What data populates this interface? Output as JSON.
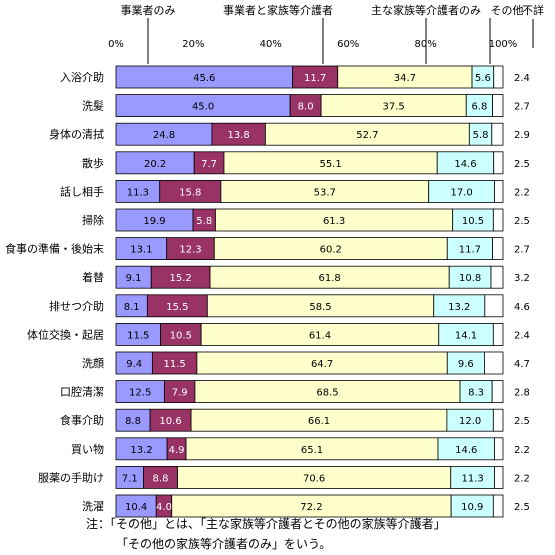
{
  "chart_data": {
    "type": "bar",
    "orientation": "horizontal",
    "stacked": true,
    "xlim": [
      0,
      100
    ],
    "x_ticks": [
      "0%",
      "20%",
      "40%",
      "60%",
      "80%",
      "100%"
    ],
    "unreported_header": "不詳",
    "series": [
      {
        "name": "事業者のみ",
        "color": "#9999ff"
      },
      {
        "name": "事業者と家族等介護者",
        "color": "#993366"
      },
      {
        "name": "主な家族等介護者のみ",
        "color": "#ffffcc"
      },
      {
        "name": "その他",
        "color": "#ccffff"
      }
    ],
    "categories": [
      "入浴介助",
      "洗髪",
      "身体の清拭",
      "散歩",
      "話し相手",
      "掃除",
      "食事の準備・後始末",
      "着替",
      "排せつ介助",
      "体位交換・起居",
      "洗顔",
      "口腔清潔",
      "食事介助",
      "買い物",
      "服薬の手助け",
      "洗濯"
    ],
    "rows": [
      {
        "values": [
          45.6,
          11.7,
          34.7,
          5.6
        ],
        "unreported": 2.4
      },
      {
        "values": [
          45.0,
          8.0,
          37.5,
          6.8
        ],
        "unreported": 2.7
      },
      {
        "values": [
          24.8,
          13.8,
          52.7,
          5.8
        ],
        "unreported": 2.9
      },
      {
        "values": [
          20.2,
          7.7,
          55.1,
          14.6
        ],
        "unreported": 2.5
      },
      {
        "values": [
          11.3,
          15.8,
          53.7,
          17.0
        ],
        "unreported": 2.2
      },
      {
        "values": [
          19.9,
          5.8,
          61.3,
          10.5
        ],
        "unreported": 2.5
      },
      {
        "values": [
          13.1,
          12.3,
          60.2,
          11.7
        ],
        "unreported": 2.7
      },
      {
        "values": [
          9.1,
          15.2,
          61.8,
          10.8
        ],
        "unreported": 3.2
      },
      {
        "values": [
          8.1,
          15.5,
          58.5,
          13.2
        ],
        "unreported": 4.6
      },
      {
        "values": [
          11.5,
          10.5,
          61.4,
          14.1
        ],
        "unreported": 2.4
      },
      {
        "values": [
          9.4,
          11.5,
          64.7,
          9.6
        ],
        "unreported": 4.7
      },
      {
        "values": [
          12.5,
          7.9,
          68.5,
          8.3
        ],
        "unreported": 2.8
      },
      {
        "values": [
          8.8,
          10.6,
          66.1,
          12.0
        ],
        "unreported": 2.5
      },
      {
        "values": [
          13.2,
          4.9,
          65.1,
          14.6
        ],
        "unreported": 2.2
      },
      {
        "values": [
          7.1,
          8.8,
          70.6,
          11.3
        ],
        "unreported": 2.2
      },
      {
        "values": [
          10.4,
          4.0,
          72.2,
          10.9
        ],
        "unreported": 2.5
      }
    ]
  },
  "note": {
    "line1": "注：「その他」とは、「主な家族等介護者とその他の家族等介護者」",
    "line2": "「その他の家族等介護者のみ」をいう。"
  }
}
